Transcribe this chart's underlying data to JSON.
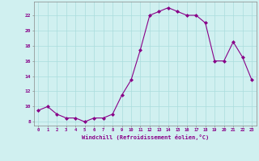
{
  "x": [
    0,
    1,
    2,
    3,
    4,
    5,
    6,
    7,
    8,
    9,
    10,
    11,
    12,
    13,
    14,
    15,
    16,
    17,
    18,
    19,
    20,
    21,
    22,
    23
  ],
  "y": [
    9.5,
    10.0,
    9.0,
    8.5,
    8.5,
    8.0,
    8.5,
    8.5,
    9.0,
    11.5,
    13.5,
    17.5,
    22.0,
    22.5,
    23.0,
    22.5,
    22.0,
    22.0,
    21.0,
    16.0,
    16.0,
    18.5,
    16.5,
    13.5
  ],
  "line_color": "#880088",
  "marker": "D",
  "marker_size": 2.0,
  "bg_color": "#d0f0f0",
  "grid_color": "#aadddd",
  "xlabel": "Windchill (Refroidissement éolien,°C)",
  "xlabel_color": "#880088",
  "tick_color": "#880088",
  "ylabel_ticks": [
    8,
    10,
    12,
    14,
    16,
    18,
    20,
    22
  ],
  "xlim": [
    -0.5,
    23.5
  ],
  "ylim": [
    7.5,
    23.8
  ],
  "spine_color": "#888888"
}
